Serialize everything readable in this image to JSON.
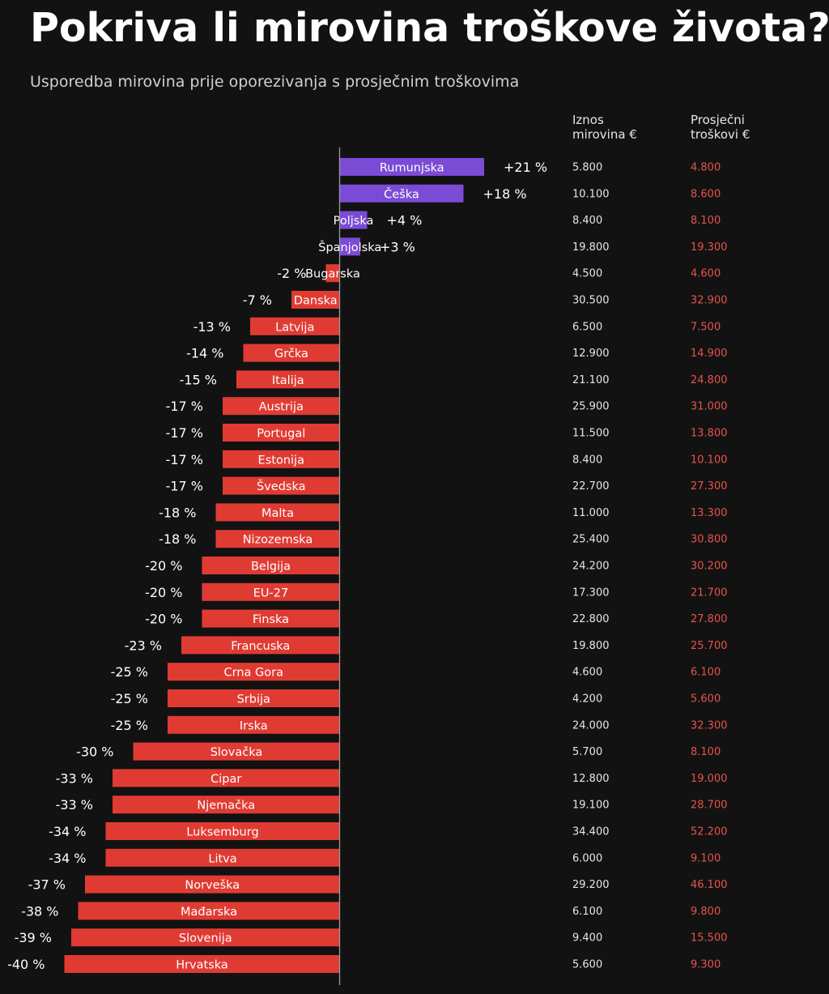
{
  "header": {
    "title": "Pokriva li mirovina troškove života?",
    "subtitle": "Usporedba mirovina prije oporezivanja s prosječnim troškovima"
  },
  "columns": {
    "pension_header": [
      "Iznos",
      "mirovina €"
    ],
    "cost_header": [
      "Prosječni",
      "troškovi €"
    ]
  },
  "colors": {
    "positive": "#7b4bd6",
    "negative": "#e03b33",
    "cost_text": "#e6544c",
    "pension_text": "#e6e6e6",
    "axis": "#9a9a9a",
    "background": "#121212"
  },
  "chart_data": {
    "type": "bar",
    "orientation": "horizontal",
    "title": "Pokriva li mirovina troškove života?",
    "subtitle": "Usporedba mirovina prije oporezivanja s prosječnim troškovima",
    "xlabel": "",
    "ylabel": "",
    "xlim": [
      -41,
      22
    ],
    "categories": [
      "Rumunjska",
      "Češka",
      "Poljska",
      "Španjolska",
      "Bugarska",
      "Danska",
      "Latvija",
      "Grčka",
      "Italija",
      "Austrija",
      "Portugal",
      "Estonija",
      "Švedska",
      "Malta",
      "Nizozemska",
      "Belgija",
      "EU-27",
      "Finska",
      "Francuska",
      "Crna Gora",
      "Srbija",
      "Irska",
      "Slovačka",
      "Cipar",
      "Njemačka",
      "Luksemburg",
      "Litva",
      "Norveška",
      "Mađarska",
      "Slovenija",
      "Hrvatska"
    ],
    "values": [
      21,
      18,
      4,
      3,
      -2,
      -7,
      -13,
      -14,
      -15,
      -17,
      -17,
      -17,
      -17,
      -18,
      -18,
      -20,
      -20,
      -20,
      -23,
      -25,
      -25,
      -25,
      -30,
      -33,
      -33,
      -34,
      -34,
      -37,
      -38,
      -39,
      -40
    ],
    "value_labels": [
      "+21 %",
      "+18 %",
      "+4 %",
      "+3 %",
      "-2 %",
      "-7 %",
      "-13 %",
      "-14 %",
      "-15 %",
      "-17 %",
      "-17 %",
      "-17 %",
      "-17 %",
      "-18 %",
      "-18 %",
      "-20 %",
      "-20 %",
      "-20 %",
      "-23 %",
      "-25 %",
      "-25 %",
      "-25 %",
      "-30 %",
      "-33 %",
      "-33 %",
      "-34 %",
      "-34 %",
      "-37 %",
      "-38 %",
      "-39 %",
      "-40 %"
    ],
    "pensions": [
      "5.800",
      "10.100",
      "8.400",
      "19.800",
      "4.500",
      "30.500",
      "6.500",
      "12.900",
      "21.100",
      "25.900",
      "11.500",
      "8.400",
      "22.700",
      "11.000",
      "25.400",
      "24.200",
      "17.300",
      "22.800",
      "19.800",
      "4.600",
      "4.200",
      "24.000",
      "5.700",
      "12.800",
      "19.100",
      "34.400",
      "6.000",
      "29.200",
      "6.100",
      "9.400",
      "5.600"
    ],
    "costs": [
      "4.800",
      "8.600",
      "8.100",
      "19.300",
      "4.600",
      "32.900",
      "7.500",
      "14.900",
      "24.800",
      "31.000",
      "13.800",
      "10.100",
      "27.300",
      "13.300",
      "30.800",
      "30.200",
      "21.700",
      "27.800",
      "25.700",
      "6.100",
      "5.600",
      "32.300",
      "8.100",
      "19.000",
      "28.700",
      "52.200",
      "9.100",
      "46.100",
      "9.800",
      "15.500",
      "9.300"
    ]
  }
}
